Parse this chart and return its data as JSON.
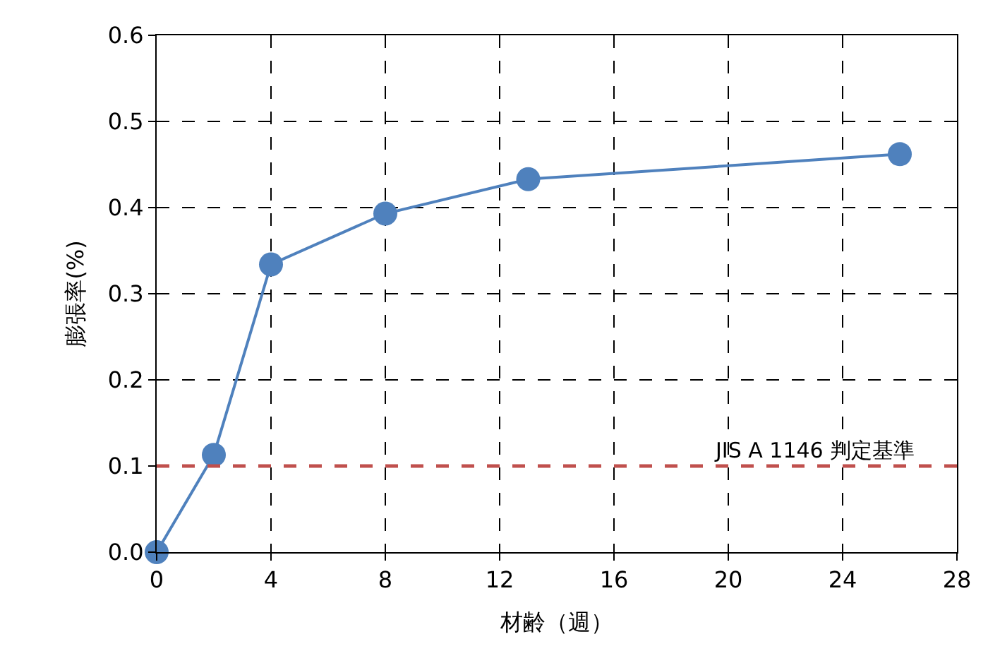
{
  "chart_data": {
    "type": "line",
    "xlabel": "材齢（週）",
    "ylabel": "膨張率(%)",
    "x": [
      0,
      2,
      4,
      8,
      13,
      26
    ],
    "series": [
      {
        "color": "#4f81bd",
        "values": [
          0.0,
          0.113,
          0.334,
          0.393,
          0.433,
          0.462
        ]
      }
    ],
    "xlim": [
      0,
      28
    ],
    "xticks": [
      0,
      4,
      8,
      12,
      16,
      20,
      24,
      28
    ],
    "ylim": [
      0,
      0.6
    ],
    "yticks": [
      {
        "value": 0,
        "label": "0.0"
      },
      0.1,
      0.2,
      0.3,
      0.4,
      0.5,
      0.6
    ],
    "ref_lines": [
      {
        "axis": "y",
        "value": 0.1,
        "label": "JIS A 1146 判定基準",
        "color": "#c0504d",
        "line_style": "dashed"
      }
    ],
    "grid": true,
    "marker": "circle",
    "line_style": "solid"
  }
}
